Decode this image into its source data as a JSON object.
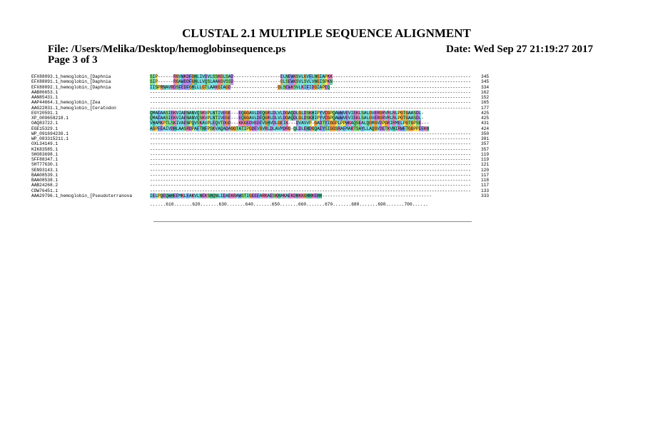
{
  "header": {
    "title": "CLUSTAL 2.1 MULTIPLE SEQUENCE ALIGNMENT",
    "file": "File: /Users/Melika/Desktop/hemoglobinsequence.ps",
    "date": "Date: Wed Sep 27 21:19:27 2017",
    "page": "Page 3 of 3"
  },
  "colors": {
    "G": "#f6a64a",
    "P": "#f7e15a",
    "AVLIM": "#7be0e3",
    "FWY": "#7aa6f0",
    "ST": "#8ee07a",
    "NQ": "#6fd6a4",
    "KR": "#ee88c0",
    "DE": "#c58af0",
    "C": "#ff7070",
    "H": "#4fc0a0"
  },
  "alignment": {
    "rows": [
      {
        "name": "EFX88093.1_hemoglobin_[Daphnia",
        "seq": "SIP------RGVWKDFGHLIVDVLSSKGLSAD------------------ELNEWKSVLGVFLNGIAPKK------------------------------------------------------------------",
        "end": "345"
      },
      {
        "name": "EFX88091.1_hemoglobin_[Daphnia",
        "seq": "SIP------RGAWDDFGHLLVQSLAAKGVSSD------------------GLSEWKSVLSVLVNGISPKN------------------------------------------------------------------",
        "end": "345"
      },
      {
        "name": "EFX88092.1_hemoglobin_[Daphnia",
        "seq": "IISPRNAVRDSFEDFGHLLLGTLAAKGIAGD------------------GLSEWKSVLKIFIDGIAPEQ------------------------------------------------------------------",
        "end": "334"
      },
      {
        "name": "AAB86653.1",
        "seq": "---------------------------------------------------------------------------------------------------------------------------",
        "end": "162"
      },
      {
        "name": "AAN85431.1",
        "seq": "---------------------------------------------------------------------------------------------------------------------------",
        "end": "152"
      },
      {
        "name": "AAP44664.1_hemoglobin_[Zea",
        "seq": "---------------------------------------------------------------------------------------------------------------------------",
        "end": "165"
      },
      {
        "name": "AAG22831.1_hemoglobin_[Ceratodon",
        "seq": "---------------------------------------------------------------------------------------------------------------------------",
        "end": "177"
      },
      {
        "name": "EGY20591.1",
        "seq": "QMAFAASIEKVIAENANVQSKVPLNTIVEGE---EQGGAVLDFQGRLDLVLDGAQDLGLDSKHIPYVCGPQAWWVEVIEKLSALGVERGRVRLRLPGTGAASDL-",
        "end": "425"
      },
      {
        "name": "XP_009658218.1",
        "seq": "QMAFAASIEKVIAENANVQSKVPLNTIVEGE---EQGGAVLDFQGRLDLVLDGAQDLGLDSKHIPYVCGPQAWWVEVIEKLSALGVERGRVRLRLPGTGAASDL-",
        "end": "425"
      },
      {
        "name": "OAQ83722.1",
        "seq": "VHAMKPTLSKIVAENPQVSKAVPLEQVTDGD---KKGEDVEDFVGHVDLGEIK---DVAVVP-GADTYIGGPLPPWKAQSEALQGMGVDPGRIRMELPGTGPSE---",
        "end": "431"
      },
      {
        "name": "EGE15329.1",
        "seq": "AGPFEAIVDHLAASRDPAFTHFPSKVAQADAGGTATIPGDEVGVRLDLAVMDRG-QLDLEHDGQAEYSIGGSRAFMARTSAYLLAQGVDETKVHIRWFTGGPPEFKH",
        "end": "424"
      },
      {
        "name": "WP_091694236.1",
        "seq": "---------------------------------------------------------------------------------------------------------------------------",
        "end": "350"
      },
      {
        "name": "WP_083315211.1",
        "seq": "---------------------------------------------------------------------------------------------------------------------------",
        "end": "381"
      },
      {
        "name": "OXL34149.1",
        "seq": "---------------------------------------------------------------------------------------------------------------------------",
        "end": "357"
      },
      {
        "name": "KIK83585.1",
        "seq": "---------------------------------------------------------------------------------------------------------------------------",
        "end": "357"
      },
      {
        "name": "SHO83698.1",
        "seq": "---------------------------------------------------------------------------------------------------------------------------",
        "end": "119"
      },
      {
        "name": "SFF88347.1",
        "seq": "---------------------------------------------------------------------------------------------------------------------------",
        "end": "119"
      },
      {
        "name": "SHT77630.1",
        "seq": "---------------------------------------------------------------------------------------------------------------------------",
        "end": "121"
      },
      {
        "name": "SEN93143.1",
        "seq": "---------------------------------------------------------------------------------------------------------------------------",
        "end": "120"
      },
      {
        "name": "BAA08539.1",
        "seq": "---------------------------------------------------------------------------------------------------------------------------",
        "end": "117"
      },
      {
        "name": "BAA08538.1",
        "seq": "---------------------------------------------------------------------------------------------------------------------------",
        "end": "118"
      },
      {
        "name": "AAB24268.2",
        "seq": "---------------------------------------------------------------------------------------------------------------------------",
        "end": "117"
      },
      {
        "name": "CDW76451.1",
        "seq": "---------------------------------------------------------------------------------------------------------------------------",
        "end": "133"
      },
      {
        "name": "AAA29796.1_hemoglobin_[Pseudoterranova",
        "seq": "IELPQEQWHEFMKLFAKVLNEKSHQNLIEAEKRAWSTIGEEFARKAESKHAKAEKDHKKGHHKEHH------------------------------------------",
        "end": "333"
      }
    ],
    "ruler": "......610.......620.......630.......640.......650.......660.......670.......680.......690.......700......"
  }
}
